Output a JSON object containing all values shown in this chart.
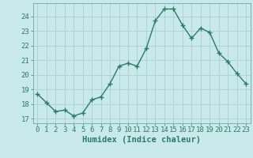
{
  "x": [
    0,
    1,
    2,
    3,
    4,
    5,
    6,
    7,
    8,
    9,
    10,
    11,
    12,
    13,
    14,
    15,
    16,
    17,
    18,
    19,
    20,
    21,
    22,
    23
  ],
  "y": [
    18.7,
    18.1,
    17.5,
    17.6,
    17.2,
    17.4,
    18.3,
    18.5,
    19.4,
    20.6,
    20.8,
    20.6,
    21.8,
    23.7,
    24.5,
    24.5,
    23.4,
    22.5,
    23.2,
    22.9,
    21.5,
    20.9,
    20.1,
    19.4
  ],
  "line_color": "#2d7a6a",
  "marker_color": "#2d7a6a",
  "bg_color": "#c8eaea",
  "grid_major_color": "#b0d0d0",
  "grid_minor_color": "#d8f0f0",
  "ylabel_ticks": [
    17,
    18,
    19,
    20,
    21,
    22,
    23,
    24
  ],
  "xlim": [
    -0.5,
    23.5
  ],
  "ylim": [
    16.7,
    24.9
  ],
  "xlabel": "Humidex (Indice chaleur)",
  "tick_label_color": "#2d7a6a",
  "xlabel_color": "#2d7a6a",
  "xlabel_fontsize": 7.5,
  "tick_fontsize": 6.5,
  "line_width": 1.0,
  "marker_size": 2.2
}
